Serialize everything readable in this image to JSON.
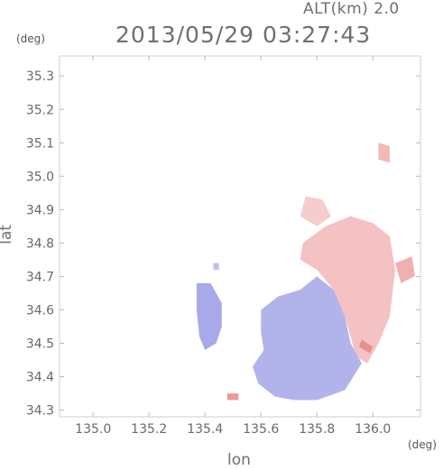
{
  "header": {
    "altitude_label": "ALT(km) 2.0",
    "timestamp": "2013/05/29 03:27:43"
  },
  "axes": {
    "y_unit": "(deg)",
    "x_unit": "(deg)",
    "y_label": "lat",
    "x_label": "lon"
  },
  "chart_data": {
    "type": "heatmap",
    "title": "2013/05/29 03:27:43",
    "subtitle": "ALT(km) 2.0",
    "xlabel": "lon",
    "ylabel": "lat",
    "xlim": [
      134.88,
      136.17
    ],
    "ylim": [
      34.28,
      35.36
    ],
    "x_ticks": [
      135.0,
      135.2,
      135.4,
      135.6,
      135.8,
      136.0
    ],
    "x_tick_labels": [
      "135.0",
      "135.2",
      "135.4",
      "135.6",
      "135.8",
      "136.0"
    ],
    "y_ticks": [
      34.3,
      34.4,
      34.5,
      34.6,
      34.7,
      34.8,
      34.9,
      35.0,
      35.1,
      35.2,
      35.3
    ],
    "y_tick_labels": [
      "34.3",
      "34.4",
      "34.5",
      "34.6",
      "34.7",
      "34.8",
      "34.9",
      "35.0",
      "35.1",
      "35.2",
      "35.3"
    ],
    "colors": {
      "approaching": "#8c8cf0",
      "receding": "#f08c8c",
      "frame": "#cfcfcf"
    },
    "regions": [
      {
        "name": "receding-main",
        "color": "#f4c2c2",
        "polygon": [
          [
            135.75,
            34.8
          ],
          [
            135.83,
            34.85
          ],
          [
            135.92,
            34.88
          ],
          [
            136.0,
            34.86
          ],
          [
            136.06,
            34.82
          ],
          [
            136.08,
            34.72
          ],
          [
            136.06,
            34.58
          ],
          [
            136.02,
            34.5
          ],
          [
            135.98,
            34.44
          ],
          [
            135.94,
            34.46
          ],
          [
            135.9,
            34.58
          ],
          [
            135.86,
            34.66
          ],
          [
            135.8,
            34.72
          ],
          [
            135.74,
            34.75
          ]
        ]
      },
      {
        "name": "receding-north",
        "color": "#f6cccc",
        "polygon": [
          [
            135.76,
            34.94
          ],
          [
            135.82,
            34.93
          ],
          [
            135.85,
            34.88
          ],
          [
            135.8,
            34.85
          ],
          [
            135.74,
            34.88
          ]
        ]
      },
      {
        "name": "receding-far-ne",
        "color": "#f3b8b8",
        "polygon": [
          [
            136.02,
            35.1
          ],
          [
            136.06,
            35.09
          ],
          [
            136.06,
            35.04
          ],
          [
            136.02,
            35.05
          ]
        ]
      },
      {
        "name": "approaching-south",
        "color": "#b3b3ec",
        "polygon": [
          [
            135.6,
            34.6
          ],
          [
            135.66,
            34.64
          ],
          [
            135.74,
            34.66
          ],
          [
            135.8,
            34.7
          ],
          [
            135.86,
            34.66
          ],
          [
            135.9,
            34.58
          ],
          [
            135.92,
            34.5
          ],
          [
            135.96,
            34.44
          ],
          [
            135.9,
            34.36
          ],
          [
            135.8,
            34.33
          ],
          [
            135.72,
            34.33
          ],
          [
            135.65,
            34.34
          ],
          [
            135.59,
            34.38
          ],
          [
            135.57,
            34.43
          ],
          [
            135.61,
            34.48
          ],
          [
            135.6,
            34.53
          ]
        ]
      },
      {
        "name": "approaching-west",
        "color": "#a9a9ea",
        "polygon": [
          [
            135.37,
            34.68
          ],
          [
            135.42,
            34.68
          ],
          [
            135.46,
            34.62
          ],
          [
            135.46,
            34.55
          ],
          [
            135.44,
            34.5
          ],
          [
            135.4,
            34.48
          ],
          [
            135.38,
            34.52
          ],
          [
            135.37,
            34.6
          ]
        ]
      },
      {
        "name": "approaching-nw-patch",
        "color": "#c0c0f0",
        "polygon": [
          [
            135.43,
            34.74
          ],
          [
            135.45,
            34.74
          ],
          [
            135.45,
            34.72
          ],
          [
            135.43,
            34.72
          ]
        ]
      },
      {
        "name": "receding-se-streak",
        "color": "#e88f8f",
        "polygon": [
          [
            135.96,
            34.51
          ],
          [
            136.0,
            34.49
          ],
          [
            135.99,
            34.47
          ],
          [
            135.95,
            34.49
          ]
        ]
      },
      {
        "name": "receding-east-band",
        "color": "#f0b0b0",
        "polygon": [
          [
            136.08,
            34.74
          ],
          [
            136.14,
            34.76
          ],
          [
            136.15,
            34.7
          ],
          [
            136.1,
            34.68
          ]
        ]
      },
      {
        "name": "receding-sw-echo",
        "color": "#ec9a9a",
        "polygon": [
          [
            135.48,
            34.35
          ],
          [
            135.52,
            34.35
          ],
          [
            135.52,
            34.33
          ],
          [
            135.48,
            34.33
          ]
        ]
      }
    ]
  }
}
